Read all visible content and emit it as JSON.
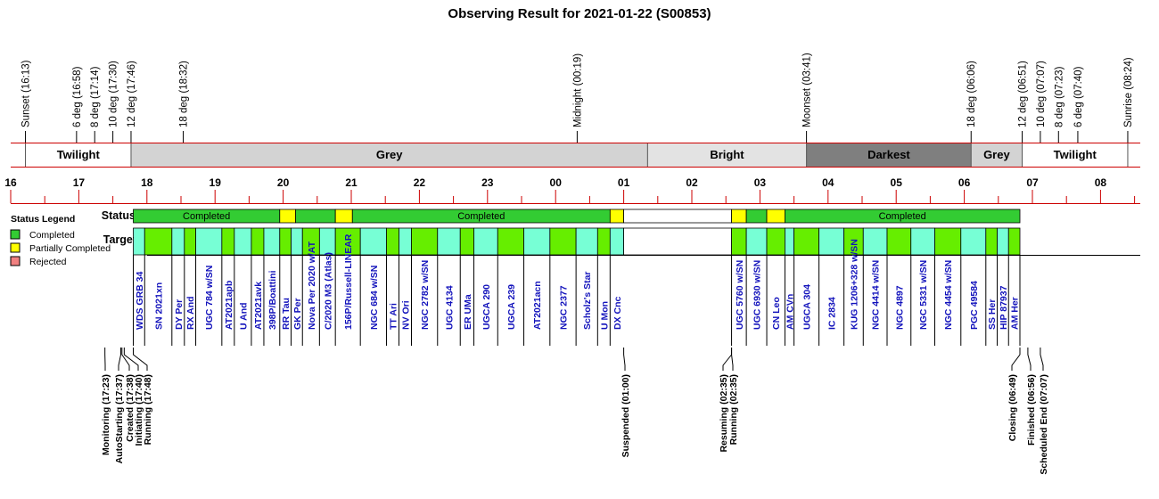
{
  "chart_data": {
    "type": "timeline",
    "title": "Observing Result for 2021-01-22 (S00853)",
    "time_axis": {
      "start": "16:00",
      "end": "08:35",
      "hour_labels": [
        "16",
        "17",
        "18",
        "19",
        "20",
        "21",
        "22",
        "23",
        "00",
        "01",
        "02",
        "03",
        "04",
        "05",
        "06",
        "07",
        "08"
      ]
    },
    "event_colors": {
      "default": "#000000",
      "moonset": "#1a1adb"
    },
    "events": [
      {
        "label": "Sunset (16:13)",
        "time": "16:13",
        "kind": "default"
      },
      {
        "label": "6 deg (16:58)",
        "time": "16:58",
        "kind": "default"
      },
      {
        "label": "8 deg (17:14)",
        "time": "17:14",
        "kind": "default"
      },
      {
        "label": "10 deg (17:30)",
        "time": "17:30",
        "kind": "default"
      },
      {
        "label": "12 deg (17:46)",
        "time": "17:46",
        "kind": "default"
      },
      {
        "label": "18 deg (18:32)",
        "time": "18:32",
        "kind": "default"
      },
      {
        "label": "Midnight (00:19)",
        "time": "00:19",
        "kind": "default"
      },
      {
        "label": "Moonset (03:41)",
        "time": "03:41",
        "kind": "moonset"
      },
      {
        "label": "18 deg (06:06)",
        "time": "06:06",
        "kind": "default"
      },
      {
        "label": "12 deg (06:51)",
        "time": "06:51",
        "kind": "default"
      },
      {
        "label": "10 deg (07:07)",
        "time": "07:07",
        "kind": "default"
      },
      {
        "label": "8 deg (07:23)",
        "time": "07:23",
        "kind": "default"
      },
      {
        "label": "6 deg (07:40)",
        "time": "07:40",
        "kind": "default"
      },
      {
        "label": "Sunrise (08:24)",
        "time": "08:24",
        "kind": "default"
      }
    ],
    "bands": [
      {
        "label": "",
        "start": "16:00",
        "end": "16:13",
        "color": "#ffffff",
        "text_color": "#000000"
      },
      {
        "label": "Twilight",
        "start": "16:13",
        "end": "17:46",
        "color": "#ffffff",
        "text_color": "#000000"
      },
      {
        "label": "Grey",
        "start": "17:46",
        "end": "01:21",
        "color": "#d3d3d3",
        "text_color": "#000000"
      },
      {
        "label": "Bright",
        "start": "01:21",
        "end": "03:41",
        "color": "#e3e3e3",
        "text_color": "#000000"
      },
      {
        "label": "Darkest",
        "start": "03:41",
        "end": "06:06",
        "color": "#7f7f7f",
        "text_color": "#ffffff"
      },
      {
        "label": "Grey",
        "start": "06:06",
        "end": "06:51",
        "color": "#d3d3d3",
        "text_color": "#000000"
      },
      {
        "label": "Twilight",
        "start": "06:51",
        "end": "08:24",
        "color": "#ffffff",
        "text_color": "#000000"
      },
      {
        "label": "",
        "start": "08:24",
        "end": "08:35",
        "color": "#ffffff",
        "text_color": "#000000"
      }
    ],
    "row_labels": {
      "status": "Status",
      "targets": "Targets"
    },
    "status_colors": {
      "completed": "#33cc33",
      "partial": "#ffff00",
      "rejected": "#f08080",
      "idle": "#ffffff"
    },
    "status_segments": [
      {
        "start": "17:48",
        "end": "19:57",
        "status": "completed",
        "label": "Completed"
      },
      {
        "start": "19:57",
        "end": "20:11",
        "status": "partial",
        "label": ""
      },
      {
        "start": "20:11",
        "end": "20:46",
        "status": "completed",
        "label": ""
      },
      {
        "start": "20:46",
        "end": "21:01",
        "status": "partial",
        "label": ""
      },
      {
        "start": "21:01",
        "end": "00:48",
        "status": "completed",
        "label": "Completed"
      },
      {
        "start": "00:48",
        "end": "01:00",
        "status": "partial",
        "label": ""
      },
      {
        "start": "01:00",
        "end": "02:35",
        "status": "idle",
        "label": ""
      },
      {
        "start": "02:35",
        "end": "02:48",
        "status": "partial",
        "label": ""
      },
      {
        "start": "02:48",
        "end": "03:06",
        "status": "completed",
        "label": ""
      },
      {
        "start": "03:06",
        "end": "03:22",
        "status": "partial",
        "label": ""
      },
      {
        "start": "03:22",
        "end": "06:49",
        "status": "completed",
        "label": "Completed"
      }
    ],
    "target_colors": {
      "green": "#66ee00",
      "cyan": "#77ffd5",
      "idle": "#ffffff"
    },
    "targets": [
      {
        "name": "WDS GRB 34",
        "start": "17:48",
        "end": "17:58",
        "color": "cyan"
      },
      {
        "name": "SN 2021xn",
        "start": "17:58",
        "end": "18:22",
        "color": "green"
      },
      {
        "name": "DY Per",
        "start": "18:22",
        "end": "18:33",
        "color": "cyan"
      },
      {
        "name": "RX And",
        "start": "18:33",
        "end": "18:43",
        "color": "green"
      },
      {
        "name": "UGC 784 w/SN",
        "start": "18:43",
        "end": "19:06",
        "color": "cyan"
      },
      {
        "name": "AT2021apb",
        "start": "19:06",
        "end": "19:17",
        "color": "green"
      },
      {
        "name": "U And",
        "start": "19:17",
        "end": "19:32",
        "color": "cyan"
      },
      {
        "name": "AT2021avk",
        "start": "19:32",
        "end": "19:43",
        "color": "green"
      },
      {
        "name": "398P/Boattini",
        "start": "19:43",
        "end": "19:57",
        "color": "cyan"
      },
      {
        "name": "RR Tau",
        "start": "19:57",
        "end": "20:07",
        "color": "green"
      },
      {
        "name": "GK Per",
        "start": "20:07",
        "end": "20:17",
        "color": "cyan"
      },
      {
        "name": "Nova Per 2020 w/AT",
        "start": "20:17",
        "end": "20:32",
        "color": "green"
      },
      {
        "name": "C/2020 M3 (Atlas)",
        "start": "20:32",
        "end": "20:46",
        "color": "cyan"
      },
      {
        "name": "156P/Russell-LINEAR",
        "start": "20:46",
        "end": "21:08",
        "color": "green"
      },
      {
        "name": "NGC 684 w/SN",
        "start": "21:08",
        "end": "21:31",
        "color": "cyan"
      },
      {
        "name": "TT Ari",
        "start": "21:31",
        "end": "21:42",
        "color": "green"
      },
      {
        "name": "NV Ori",
        "start": "21:42",
        "end": "21:53",
        "color": "cyan"
      },
      {
        "name": "NGC 2782 w/SN",
        "start": "21:53",
        "end": "22:16",
        "color": "green"
      },
      {
        "name": "UGC 4134",
        "start": "22:16",
        "end": "22:36",
        "color": "cyan"
      },
      {
        "name": "ER UMa",
        "start": "22:36",
        "end": "22:48",
        "color": "green"
      },
      {
        "name": "UGCA 290",
        "start": "22:48",
        "end": "23:09",
        "color": "cyan"
      },
      {
        "name": "UGCA 239",
        "start": "23:09",
        "end": "23:32",
        "color": "green"
      },
      {
        "name": "AT2021acn",
        "start": "23:32",
        "end": "23:55",
        "color": "cyan"
      },
      {
        "name": "NGC 2377",
        "start": "23:55",
        "end": "00:18",
        "color": "green"
      },
      {
        "name": "Scholz's Star",
        "start": "00:18",
        "end": "00:37",
        "color": "cyan"
      },
      {
        "name": "U Mon",
        "start": "00:37",
        "end": "00:48",
        "color": "green"
      },
      {
        "name": "DX Cnc",
        "start": "00:48",
        "end": "01:00",
        "color": "cyan"
      },
      {
        "name": "",
        "start": "01:00",
        "end": "02:35",
        "color": "idle"
      },
      {
        "name": "UGC 5760 w/SN",
        "start": "02:35",
        "end": "02:48",
        "color": "green"
      },
      {
        "name": "UGC 6930 w/SN",
        "start": "02:48",
        "end": "03:06",
        "color": "cyan"
      },
      {
        "name": "CN Leo",
        "start": "03:06",
        "end": "03:22",
        "color": "green"
      },
      {
        "name": "AM CVn",
        "start": "03:22",
        "end": "03:30",
        "color": "cyan"
      },
      {
        "name": "UGCA 304",
        "start": "03:30",
        "end": "03:52",
        "color": "green"
      },
      {
        "name": "IC 2834",
        "start": "03:52",
        "end": "04:14",
        "color": "cyan"
      },
      {
        "name": "KUG 1206+328 w/SN",
        "start": "04:14",
        "end": "04:31",
        "color": "green"
      },
      {
        "name": "NGC 4414 w/SN",
        "start": "04:31",
        "end": "04:52",
        "color": "cyan"
      },
      {
        "name": "NGC 4897",
        "start": "04:52",
        "end": "05:13",
        "color": "green"
      },
      {
        "name": "NGC 5331 w/SN",
        "start": "05:13",
        "end": "05:34",
        "color": "cyan"
      },
      {
        "name": "NGC 4454 w/SN",
        "start": "05:34",
        "end": "05:57",
        "color": "green"
      },
      {
        "name": "PGC 49584",
        "start": "05:57",
        "end": "06:19",
        "color": "cyan"
      },
      {
        "name": "SS Her",
        "start": "06:19",
        "end": "06:29",
        "color": "green"
      },
      {
        "name": "HIP 87937",
        "start": "06:29",
        "end": "06:39",
        "color": "cyan"
      },
      {
        "name": "AM Her",
        "start": "06:39",
        "end": "06:49",
        "color": "green"
      }
    ],
    "bottom_colors": {
      "default": "#000000",
      "suspended": "#f08c00"
    },
    "bottom_events": [
      {
        "label": "Monitoring (17:23)",
        "time": "17:23",
        "kind": "default"
      },
      {
        "label": "AutoStarting (17:37)",
        "time": "17:37",
        "kind": "default"
      },
      {
        "label": "Created (17:38)",
        "time": "17:38",
        "kind": "default"
      },
      {
        "label": "Initiating (17:40)",
        "time": "17:40",
        "kind": "default"
      },
      {
        "label": "Running (17:48)",
        "time": "17:48",
        "kind": "default"
      },
      {
        "label": "Suspended (01:00)",
        "time": "01:00",
        "kind": "suspended"
      },
      {
        "label": "Resuming (02:35)",
        "time": "02:35",
        "kind": "default"
      },
      {
        "label": "Running (02:35)",
        "time": "02:35",
        "kind": "default"
      },
      {
        "label": "Closing (06:49)",
        "time": "06:49",
        "kind": "default"
      },
      {
        "label": "Finished (06:56)",
        "time": "06:56",
        "kind": "default"
      },
      {
        "label": "Scheduled End (07:07)",
        "time": "07:07",
        "kind": "default"
      }
    ],
    "legend": {
      "title": "Status Legend",
      "position": "left",
      "items": [
        {
          "label": "Completed",
          "status": "completed"
        },
        {
          "label": "Partially Completed",
          "status": "partial"
        },
        {
          "label": "Rejected",
          "status": "rejected"
        }
      ]
    }
  }
}
